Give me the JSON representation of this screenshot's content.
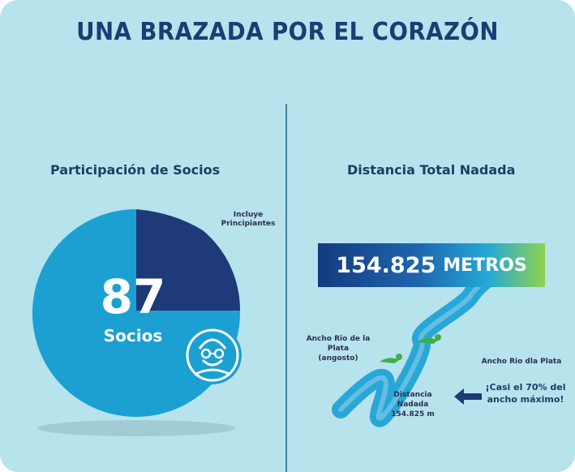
{
  "title": "UNA BRAZADA POR EL CORAZÓN",
  "left": {
    "heading": "Participación de Socios",
    "note_line1": "Incluye",
    "note_line2": "Principiantes",
    "count": "87",
    "count_label": "Socios",
    "icon": "swimmer-goggles-icon"
  },
  "right": {
    "heading": "Distancia Total Nadada",
    "meters_value": "154.825",
    "meters_unit": "METROS",
    "narrow_label_line1": "Ancho Rio de la Plata",
    "narrow_label_line2": "(angosto)",
    "wide_label": "Ancho Rio dla Plata",
    "distance_label_line1": "Distancia Nadada",
    "distance_label_line2": "154.825 m",
    "callout_line1": "¡Casi el 70% del",
    "callout_line2": "ancho máximo!"
  },
  "colors": {
    "background": "#b7e3ec",
    "title": "#173f74",
    "donut_light": "#1ca0d2",
    "donut_dark": "#1f3a78",
    "river": "#28a6d7",
    "swimmer": "#3fae49"
  }
}
